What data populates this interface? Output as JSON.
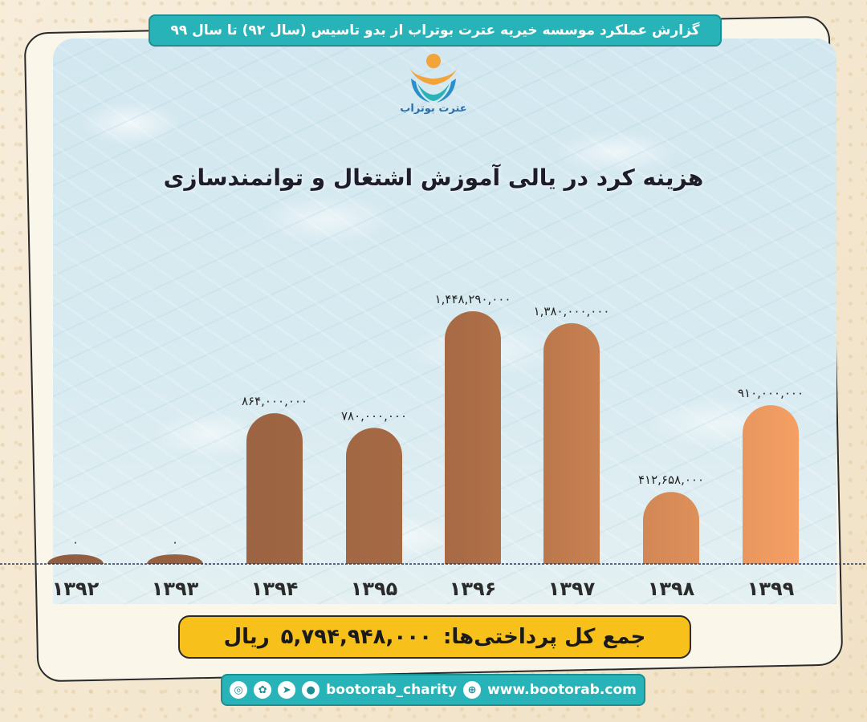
{
  "header": {
    "banner_text": "گزارش عملکرد موسسه خیریه عترت بوتراب از بدو تاسیس (سال ۹۲) تا سال ۹۹"
  },
  "logo": {
    "text": "عترت بوتراب"
  },
  "chart_data": {
    "type": "bar",
    "title": "هزینه کرد در یالی آموزش اشتغال و توانمندسازی",
    "categories": [
      "۱۳۹۲",
      "۱۳۹۳",
      "۱۳۹۴",
      "۱۳۹۵",
      "۱۳۹۶",
      "۱۳۹۷",
      "۱۳۹۸",
      "۱۳۹۹"
    ],
    "values": [
      0,
      0,
      864000000,
      780000000,
      1448290000,
      1380000000,
      412658000,
      910000000
    ],
    "value_labels": [
      "۰",
      "۰",
      "۸۶۴,۰۰۰,۰۰۰",
      "۷۸۰,۰۰۰,۰۰۰",
      "۱,۴۴۸,۲۹۰,۰۰۰",
      "۱,۳۸۰,۰۰۰,۰۰۰",
      "۴۱۲,۶۵۸,۰۰۰",
      "۹۱۰,۰۰۰,۰۰۰"
    ],
    "ylim": [
      0,
      1500000000
    ],
    "colors": {
      "dark": "#8f5d3f",
      "light": "#f6a064"
    },
    "grid": false,
    "legend": "none"
  },
  "total": {
    "label": "جمع کل پرداختی‌ها:",
    "value": "۵,۷۹۴,۹۴۸,۰۰۰",
    "unit": "ریال"
  },
  "footer": {
    "handle": "bootorab_charity",
    "website": "www.bootorab.com",
    "icons": [
      "instagram-icon",
      "aparat-icon",
      "telegram-icon",
      "eitaa-icon",
      "globe-icon"
    ]
  }
}
